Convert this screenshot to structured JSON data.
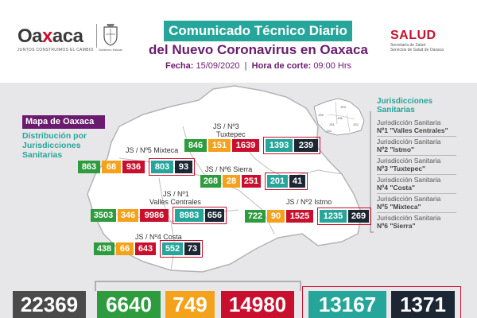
{
  "header": {
    "logo": {
      "word_a": "Oa",
      "word_x": "x",
      "word_b": "aca",
      "slogan": "JUNTOS CONSTRUIMOS EL CAMBIO",
      "seal_caption": "Gobierno  Estado"
    },
    "title": "Comunicado Técnico Diario",
    "subtitle": "del Nuevo Coronavirus en Oaxaca",
    "date_label": "Fecha:",
    "date_value": "15/09/2020",
    "cut_label": "Hora de corte:",
    "cut_value": "09:00 Hrs",
    "salud": {
      "word": "SALUD",
      "sub1": "Secretaría de Salud",
      "sub2": "Servicios de Salud de Oaxaca"
    }
  },
  "map": {
    "label": "Mapa de Oaxaca",
    "subtitle": "Distribución por Jurisdicciones Sanitarias",
    "inset_labels": [
      "JS1",
      "JS2",
      "JS3",
      "JS4",
      "JS5",
      "JS6"
    ],
    "jurisdictions": {
      "tuxtepec": {
        "label_line1": "JS / Nº3",
        "label_line2": "Tuxtepec",
        "values": [
          "846",
          "151",
          "1639",
          "1393",
          "239"
        ]
      },
      "mixteca": {
        "label_line1": "JS / Nº5 Mixteca",
        "values": [
          "863",
          "68",
          "936",
          "803",
          "93"
        ]
      },
      "sierra": {
        "label_line1": "JS / Nº6 Sierra",
        "values": [
          "268",
          "28",
          "251",
          "201",
          "41"
        ]
      },
      "valles": {
        "label_line1": "JS / Nº1",
        "label_line2": "Valles Centrales",
        "values": [
          "3503",
          "346",
          "9986",
          "8983",
          "656"
        ]
      },
      "istmo": {
        "label_line1": "JS / Nº2 Istmo",
        "values": [
          "722",
          "90",
          "1525",
          "1235",
          "269"
        ]
      },
      "costa": {
        "label_line1": "JS / Nº4 Costa",
        "values": [
          "438",
          "66",
          "643",
          "552",
          "73"
        ]
      }
    }
  },
  "legend": {
    "title_line1": "Jurisdicciones",
    "title_line2": "Sanitarias",
    "items": [
      {
        "line1": "Jurisdicción Sanitaria",
        "line2": "Nº1 \"Valles Centrales\""
      },
      {
        "line1": "Jurisdicción Sanitaria",
        "line2": "Nº2 \"Istmo\""
      },
      {
        "line1": "Jurisdicción Sanitaria",
        "line2": "Nº3 \"Tuxtepec\""
      },
      {
        "line1": "Jurisdicción Sanitaria",
        "line2": "Nº4 \"Costa\""
      },
      {
        "line1": "Jurisdicción Sanitaria",
        "line2": "Nº5 \"Mixteca\""
      },
      {
        "line1": "Jurisdicción Sanitaria",
        "line2": "Nº6 \"Sierra\""
      }
    ]
  },
  "totals": [
    "22369",
    "6640",
    "749",
    "14980",
    "13167",
    "1371"
  ],
  "colors": {
    "teal": "#26a69a",
    "purple": "#6a1b6e",
    "red": "#c8102e",
    "green": "#2e9b3e",
    "orange": "#f4a21c",
    "navy": "#1c2733",
    "gray": "#4a4a4a"
  }
}
